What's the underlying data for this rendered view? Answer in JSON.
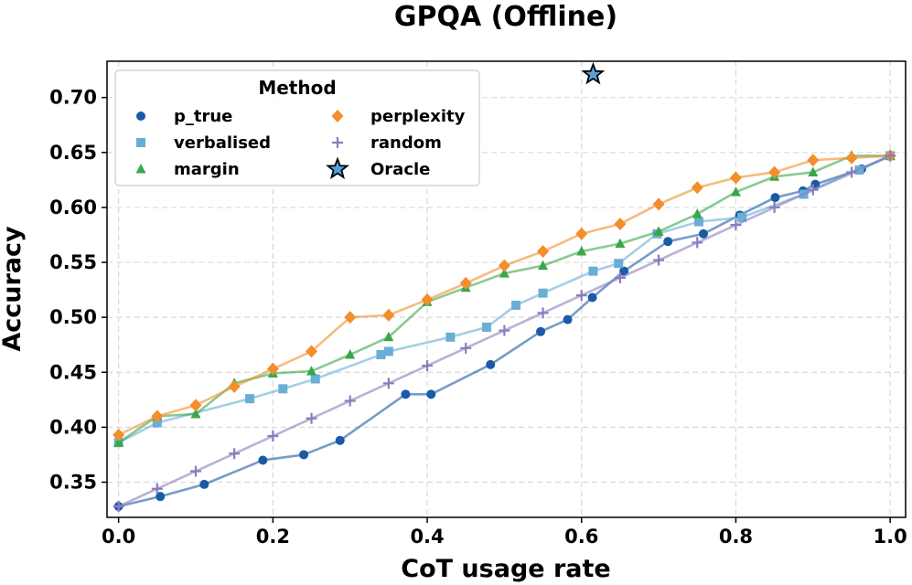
{
  "chart_data": {
    "type": "line",
    "title": "GPQA (Offline)",
    "xlabel": "CoT usage rate",
    "ylabel": "Accuracy",
    "xlim": [
      -0.015,
      1.02
    ],
    "ylim": [
      0.318,
      0.733
    ],
    "xticks": [
      "0.0",
      "0.2",
      "0.4",
      "0.6",
      "0.8",
      "1.0"
    ],
    "yticks": [
      "0.35",
      "0.40",
      "0.45",
      "0.50",
      "0.55",
      "0.60",
      "0.65",
      "0.70"
    ],
    "grid": true,
    "legend": {
      "title": "Method",
      "placement": "top-left"
    },
    "series": [
      {
        "name": "p_true",
        "color": "#1a5aa6",
        "marker": "circle",
        "x": [
          0.0,
          0.054,
          0.111,
          0.187,
          0.24,
          0.287,
          0.372,
          0.405,
          0.482,
          0.547,
          0.582,
          0.614,
          0.655,
          0.712,
          0.758,
          0.805,
          0.851,
          0.887,
          0.903,
          0.963,
          1.0
        ],
        "y": [
          0.328,
          0.337,
          0.348,
          0.37,
          0.375,
          0.388,
          0.43,
          0.43,
          0.457,
          0.487,
          0.498,
          0.518,
          0.542,
          0.569,
          0.576,
          0.593,
          0.609,
          0.615,
          0.621,
          0.635,
          0.647
        ]
      },
      {
        "name": "verbalised",
        "color": "#6aaed6",
        "marker": "square",
        "x": [
          0.0,
          0.05,
          0.17,
          0.213,
          0.255,
          0.34,
          0.35,
          0.43,
          0.477,
          0.515,
          0.55,
          0.615,
          0.648,
          0.698,
          0.752,
          0.808,
          0.888,
          0.96,
          1.0
        ],
        "y": [
          0.386,
          0.404,
          0.426,
          0.435,
          0.444,
          0.466,
          0.469,
          0.482,
          0.491,
          0.511,
          0.522,
          0.542,
          0.549,
          0.576,
          0.587,
          0.591,
          0.612,
          0.634,
          0.647
        ]
      },
      {
        "name": "margin",
        "color": "#3aa64a",
        "marker": "triangle",
        "x": [
          0.0,
          0.05,
          0.1,
          0.15,
          0.2,
          0.25,
          0.3,
          0.35,
          0.4,
          0.45,
          0.5,
          0.55,
          0.6,
          0.65,
          0.7,
          0.75,
          0.8,
          0.85,
          0.9,
          0.95,
          1.0
        ],
        "y": [
          0.386,
          0.41,
          0.412,
          0.44,
          0.449,
          0.451,
          0.466,
          0.482,
          0.514,
          0.527,
          0.54,
          0.547,
          0.56,
          0.567,
          0.578,
          0.594,
          0.614,
          0.628,
          0.632,
          0.647,
          0.647
        ]
      },
      {
        "name": "perplexity",
        "color": "#f28e2b",
        "marker": "diamond",
        "x": [
          0.0,
          0.05,
          0.1,
          0.15,
          0.2,
          0.25,
          0.3,
          0.35,
          0.4,
          0.45,
          0.5,
          0.55,
          0.6,
          0.65,
          0.7,
          0.75,
          0.8,
          0.85,
          0.9,
          0.95,
          1.0
        ],
        "y": [
          0.393,
          0.41,
          0.42,
          0.437,
          0.453,
          0.469,
          0.5,
          0.502,
          0.516,
          0.531,
          0.547,
          0.56,
          0.576,
          0.585,
          0.603,
          0.618,
          0.627,
          0.632,
          0.643,
          0.645,
          0.647
        ]
      },
      {
        "name": "random",
        "color": "#8a7dbd",
        "marker": "plus",
        "x": [
          0.0,
          0.05,
          0.1,
          0.15,
          0.2,
          0.25,
          0.3,
          0.35,
          0.4,
          0.45,
          0.5,
          0.55,
          0.6,
          0.65,
          0.7,
          0.75,
          0.8,
          0.85,
          0.9,
          0.95,
          1.0
        ],
        "y": [
          0.328,
          0.344,
          0.36,
          0.376,
          0.392,
          0.408,
          0.424,
          0.44,
          0.456,
          0.472,
          0.488,
          0.504,
          0.52,
          0.536,
          0.552,
          0.568,
          0.584,
          0.6,
          0.616,
          0.632,
          0.647
        ]
      }
    ],
    "points": [
      {
        "name": "Oracle",
        "x": 0.615,
        "y": 0.721,
        "color": "#5aa0d8",
        "marker": "star"
      }
    ]
  }
}
